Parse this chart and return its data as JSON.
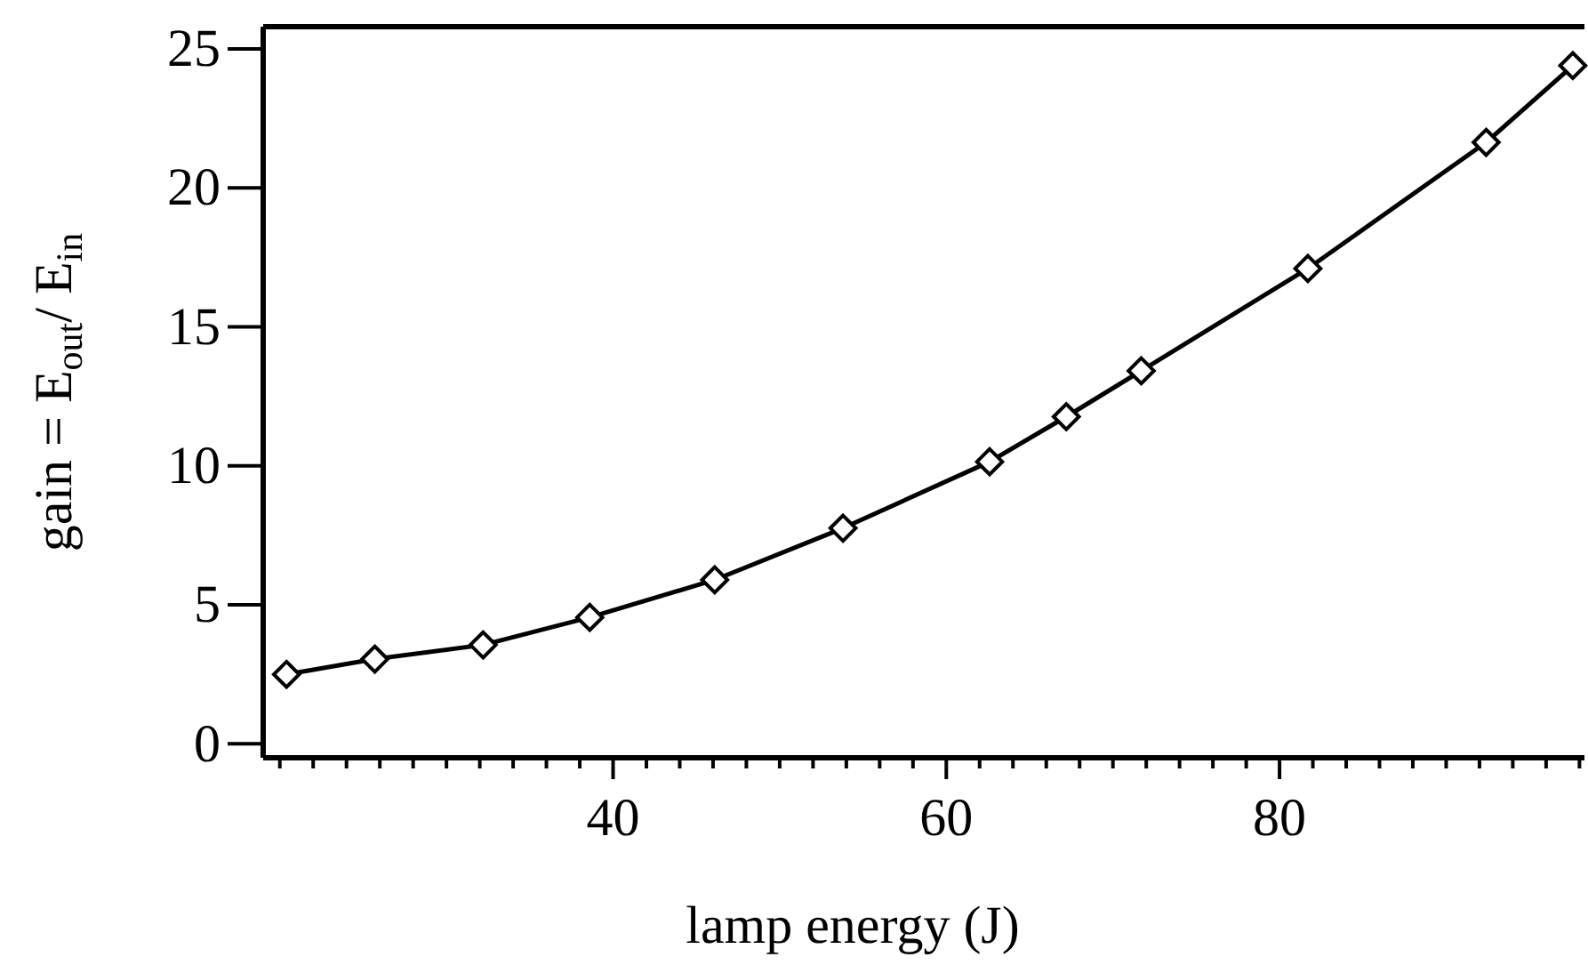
{
  "chart_data": {
    "type": "line",
    "xlabel": "lamp energy (J)",
    "ylabel": "gain = E$_{out}$/ E$_{in}$",
    "x": [
      20.4,
      25.7,
      32.2,
      38.6,
      46.1,
      53.8,
      62.6,
      67.2,
      71.7,
      81.7,
      92.4,
      97.6
    ],
    "series": [
      {
        "color": "#000000",
        "values": [
          2.5,
          3.05,
          3.56,
          4.55,
          5.9,
          7.76,
          10.15,
          11.77,
          13.42,
          17.1,
          21.64,
          24.4
        ]
      }
    ],
    "marker": "diamond",
    "line_style": "solid",
    "grid": false,
    "xlim": [
      19,
      98.3
    ],
    "ylim": [
      -0.5,
      25.8
    ],
    "xticks": [
      {
        "value": 20,
        "label": null
      },
      {
        "value": 22,
        "label": null
      },
      {
        "value": 24,
        "label": null
      },
      {
        "value": 26,
        "label": null
      },
      {
        "value": 28,
        "label": null
      },
      {
        "value": 30,
        "label": null
      },
      {
        "value": 32,
        "label": null
      },
      {
        "value": 34,
        "label": null
      },
      {
        "value": 36,
        "label": null
      },
      {
        "value": 38,
        "label": null
      },
      40,
      {
        "value": 42,
        "label": null
      },
      {
        "value": 44,
        "label": null
      },
      {
        "value": 46,
        "label": null
      },
      {
        "value": 48,
        "label": null
      },
      {
        "value": 50,
        "label": null
      },
      {
        "value": 52,
        "label": null
      },
      {
        "value": 54,
        "label": null
      },
      {
        "value": 56,
        "label": null
      },
      {
        "value": 58,
        "label": null
      },
      60,
      {
        "value": 62,
        "label": null
      },
      {
        "value": 64,
        "label": null
      },
      {
        "value": 66,
        "label": null
      },
      {
        "value": 68,
        "label": null
      },
      {
        "value": 70,
        "label": null
      },
      {
        "value": 72,
        "label": null
      },
      {
        "value": 74,
        "label": null
      },
      {
        "value": 76,
        "label": null
      },
      {
        "value": 78,
        "label": null
      },
      80,
      {
        "value": 82,
        "label": null
      },
      {
        "value": 84,
        "label": null
      },
      {
        "value": 86,
        "label": null
      },
      {
        "value": 88,
        "label": null
      },
      {
        "value": 90,
        "label": null
      },
      {
        "value": 92,
        "label": null
      },
      {
        "value": 94,
        "label": null
      },
      {
        "value": 96,
        "label": null
      },
      {
        "value": 98,
        "label": null
      }
    ],
    "yticks": [
      0,
      5,
      10,
      15,
      20,
      25
    ]
  }
}
